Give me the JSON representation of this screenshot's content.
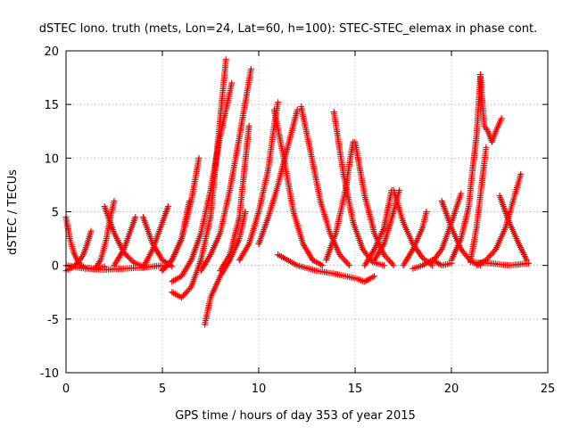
{
  "chart_data": {
    "type": "scatter",
    "title": "dSTEC Iono. truth (mets, Lon=24, Lat=60, h=100): STEC-STEC_elemax in phase cont.",
    "xlabel": "GPS time / hours of day 353 of year 2015",
    "ylabel": "dSTEC  / TECUs",
    "xlim": [
      0,
      25
    ],
    "ylim": [
      -10,
      20
    ],
    "xticks": [
      0,
      5,
      10,
      15,
      20,
      25
    ],
    "yticks": [
      -10,
      -5,
      0,
      5,
      10,
      15,
      20
    ],
    "grid": true,
    "legend": "none",
    "marker": "+",
    "series_color": "#ff0000",
    "series": [
      {
        "values": [
          [
            0.0,
            4.5
          ],
          [
            0.2,
            2.5
          ],
          [
            0.4,
            1.2
          ],
          [
            0.6,
            0.4
          ],
          [
            0.8,
            0.0
          ],
          [
            1.0,
            -0.2
          ],
          [
            1.5,
            -0.3
          ],
          [
            2.0,
            -0.1
          ]
        ]
      },
      {
        "values": [
          [
            0.0,
            -0.5
          ],
          [
            0.3,
            -0.2
          ],
          [
            0.6,
            0.2
          ],
          [
            0.9,
            1.0
          ],
          [
            1.1,
            2.0
          ],
          [
            1.3,
            3.2
          ]
        ]
      },
      {
        "values": [
          [
            0.0,
            0.0
          ],
          [
            1.0,
            -0.3
          ],
          [
            2.0,
            -0.4
          ],
          [
            3.0,
            -0.3
          ],
          [
            4.0,
            -0.2
          ],
          [
            5.0,
            0.0
          ]
        ]
      },
      {
        "values": [
          [
            1.5,
            -0.3
          ],
          [
            1.8,
            0.5
          ],
          [
            2.1,
            2.5
          ],
          [
            2.3,
            4.5
          ],
          [
            2.5,
            6.0
          ]
        ]
      },
      {
        "values": [
          [
            2.0,
            5.5
          ],
          [
            2.5,
            3.0
          ],
          [
            3.0,
            1.2
          ],
          [
            3.5,
            0.3
          ],
          [
            4.0,
            -0.1
          ]
        ]
      },
      {
        "values": [
          [
            2.5,
            0.0
          ],
          [
            3.0,
            1.5
          ],
          [
            3.3,
            3.0
          ],
          [
            3.6,
            4.5
          ]
        ]
      },
      {
        "values": [
          [
            4.0,
            4.5
          ],
          [
            4.5,
            2.0
          ],
          [
            5.0,
            0.5
          ],
          [
            5.5,
            -0.1
          ]
        ]
      },
      {
        "values": [
          [
            4.0,
            -0.2
          ],
          [
            4.5,
            1.5
          ],
          [
            4.9,
            3.5
          ],
          [
            5.3,
            5.5
          ]
        ]
      },
      {
        "values": [
          [
            5.0,
            -0.4
          ],
          [
            5.5,
            0.5
          ],
          [
            6.0,
            2.5
          ],
          [
            6.4,
            6.0
          ]
        ]
      },
      {
        "values": [
          [
            5.5,
            -2.5
          ],
          [
            6.0,
            -3.0
          ],
          [
            6.5,
            -2.0
          ],
          [
            7.0,
            0.5
          ],
          [
            7.5,
            4.5
          ],
          [
            8.3,
            19.2
          ]
        ]
      },
      {
        "values": [
          [
            5.5,
            -1.5
          ],
          [
            6.0,
            -1.0
          ],
          [
            6.5,
            0.5
          ],
          [
            7.0,
            3.0
          ],
          [
            7.5,
            7.0
          ],
          [
            8.0,
            12.0
          ],
          [
            8.6,
            17.0
          ]
        ]
      },
      {
        "values": [
          [
            5.0,
            -0.5
          ],
          [
            5.5,
            0.5
          ],
          [
            6.0,
            2.5
          ],
          [
            6.5,
            6.0
          ],
          [
            6.9,
            10.0
          ]
        ]
      },
      {
        "values": [
          [
            7.2,
            -5.5
          ],
          [
            7.5,
            -3.0
          ],
          [
            8.0,
            -1.0
          ],
          [
            8.5,
            0.5
          ],
          [
            9.0,
            2.5
          ],
          [
            9.3,
            5.0
          ]
        ]
      },
      {
        "values": [
          [
            7.0,
            -0.5
          ],
          [
            7.5,
            1.0
          ],
          [
            8.0,
            3.0
          ],
          [
            8.5,
            7.0
          ],
          [
            9.0,
            12.0
          ],
          [
            9.6,
            18.3
          ]
        ]
      },
      {
        "values": [
          [
            8.0,
            -0.5
          ],
          [
            8.5,
            1.0
          ],
          [
            9.0,
            4.5
          ],
          [
            9.2,
            8.0
          ],
          [
            9.5,
            13.0
          ]
        ]
      },
      {
        "values": [
          [
            9.0,
            0.5
          ],
          [
            9.5,
            2.0
          ],
          [
            10.0,
            5.0
          ],
          [
            10.5,
            9.0
          ],
          [
            10.8,
            13.0
          ],
          [
            11.0,
            15.2
          ]
        ]
      },
      {
        "values": [
          [
            10.0,
            2.0
          ],
          [
            10.5,
            4.5
          ],
          [
            11.0,
            7.5
          ],
          [
            11.5,
            11.0
          ],
          [
            12.0,
            14.5
          ]
        ]
      },
      {
        "values": [
          [
            10.8,
            14.5
          ],
          [
            11.3,
            10.0
          ],
          [
            11.8,
            5.0
          ],
          [
            12.3,
            2.0
          ],
          [
            12.8,
            0.5
          ],
          [
            13.3,
            0.0
          ]
        ]
      },
      {
        "values": [
          [
            12.2,
            14.8
          ],
          [
            12.7,
            10.5
          ],
          [
            13.2,
            6.0
          ],
          [
            13.7,
            3.0
          ],
          [
            14.2,
            1.0
          ],
          [
            14.7,
            0.0
          ]
        ]
      },
      {
        "values": [
          [
            11.0,
            1.0
          ],
          [
            12.0,
            0.0
          ],
          [
            13.0,
            -0.5
          ],
          [
            14.0,
            -0.8
          ],
          [
            15.0,
            -1.2
          ],
          [
            15.5,
            -1.5
          ],
          [
            16.0,
            -1.0
          ]
        ]
      },
      {
        "values": [
          [
            13.5,
            0.5
          ],
          [
            14.0,
            3.0
          ],
          [
            14.5,
            7.0
          ],
          [
            14.8,
            10.5
          ],
          [
            14.9,
            11.5
          ]
        ]
      },
      {
        "values": [
          [
            13.9,
            14.3
          ],
          [
            14.4,
            8.5
          ],
          [
            14.9,
            4.0
          ],
          [
            15.4,
            1.5
          ],
          [
            15.9,
            0.3
          ],
          [
            16.5,
            0.0
          ]
        ]
      },
      {
        "values": [
          [
            15.0,
            11.5
          ],
          [
            15.5,
            6.5
          ],
          [
            16.0,
            3.0
          ],
          [
            16.5,
            1.0
          ],
          [
            17.0,
            0.0
          ]
        ]
      },
      {
        "values": [
          [
            15.5,
            0.0
          ],
          [
            16.0,
            1.5
          ],
          [
            16.5,
            3.5
          ],
          [
            16.9,
            7.0
          ]
        ]
      },
      {
        "values": [
          [
            16.0,
            0.5
          ],
          [
            16.5,
            2.0
          ],
          [
            17.0,
            5.0
          ],
          [
            17.3,
            7.0
          ]
        ]
      },
      {
        "values": [
          [
            17.0,
            7.0
          ],
          [
            17.5,
            4.0
          ],
          [
            18.0,
            2.0
          ],
          [
            18.5,
            0.7
          ],
          [
            19.0,
            0.0
          ]
        ]
      },
      {
        "values": [
          [
            17.5,
            0.0
          ],
          [
            18.0,
            1.5
          ],
          [
            18.5,
            3.5
          ],
          [
            18.7,
            5.0
          ]
        ]
      },
      {
        "values": [
          [
            18.0,
            -0.3
          ],
          [
            18.5,
            0.0
          ],
          [
            19.0,
            0.5
          ],
          [
            19.5,
            0.0
          ],
          [
            20.0,
            0.2
          ]
        ]
      },
      {
        "values": [
          [
            19.0,
            0.3
          ],
          [
            19.5,
            1.5
          ],
          [
            20.0,
            4.0
          ],
          [
            20.5,
            6.7
          ]
        ]
      },
      {
        "values": [
          [
            19.5,
            6.0
          ],
          [
            20.0,
            3.5
          ],
          [
            20.5,
            1.5
          ],
          [
            21.0,
            0.4
          ],
          [
            21.5,
            0.0
          ]
        ]
      },
      {
        "values": [
          [
            20.0,
            0.5
          ],
          [
            20.5,
            2.5
          ],
          [
            20.9,
            5.5
          ],
          [
            21.1,
            9.0
          ],
          [
            21.3,
            12.0
          ],
          [
            21.5,
            17.5
          ]
        ]
      },
      {
        "values": [
          [
            21.5,
            17.8
          ],
          [
            21.7,
            13.0
          ],
          [
            21.9,
            12.5
          ],
          [
            22.1,
            11.5
          ],
          [
            22.3,
            12.5
          ],
          [
            22.6,
            13.7
          ]
        ]
      },
      {
        "values": [
          [
            21.0,
            0.5
          ],
          [
            21.3,
            3.5
          ],
          [
            21.5,
            6.5
          ],
          [
            21.7,
            9.5
          ],
          [
            21.8,
            11.0
          ]
        ]
      },
      {
        "values": [
          [
            21.3,
            0.0
          ],
          [
            21.8,
            0.5
          ],
          [
            22.3,
            1.5
          ],
          [
            22.8,
            3.5
          ],
          [
            23.2,
            6.0
          ],
          [
            23.6,
            8.5
          ]
        ]
      },
      {
        "values": [
          [
            22.5,
            6.5
          ],
          [
            23.0,
            4.0
          ],
          [
            23.5,
            2.0
          ],
          [
            23.9,
            0.5
          ]
        ]
      },
      {
        "values": [
          [
            21.0,
            0.3
          ],
          [
            22.0,
            0.2
          ],
          [
            23.0,
            0.0
          ],
          [
            24.0,
            0.2
          ]
        ]
      }
    ]
  }
}
